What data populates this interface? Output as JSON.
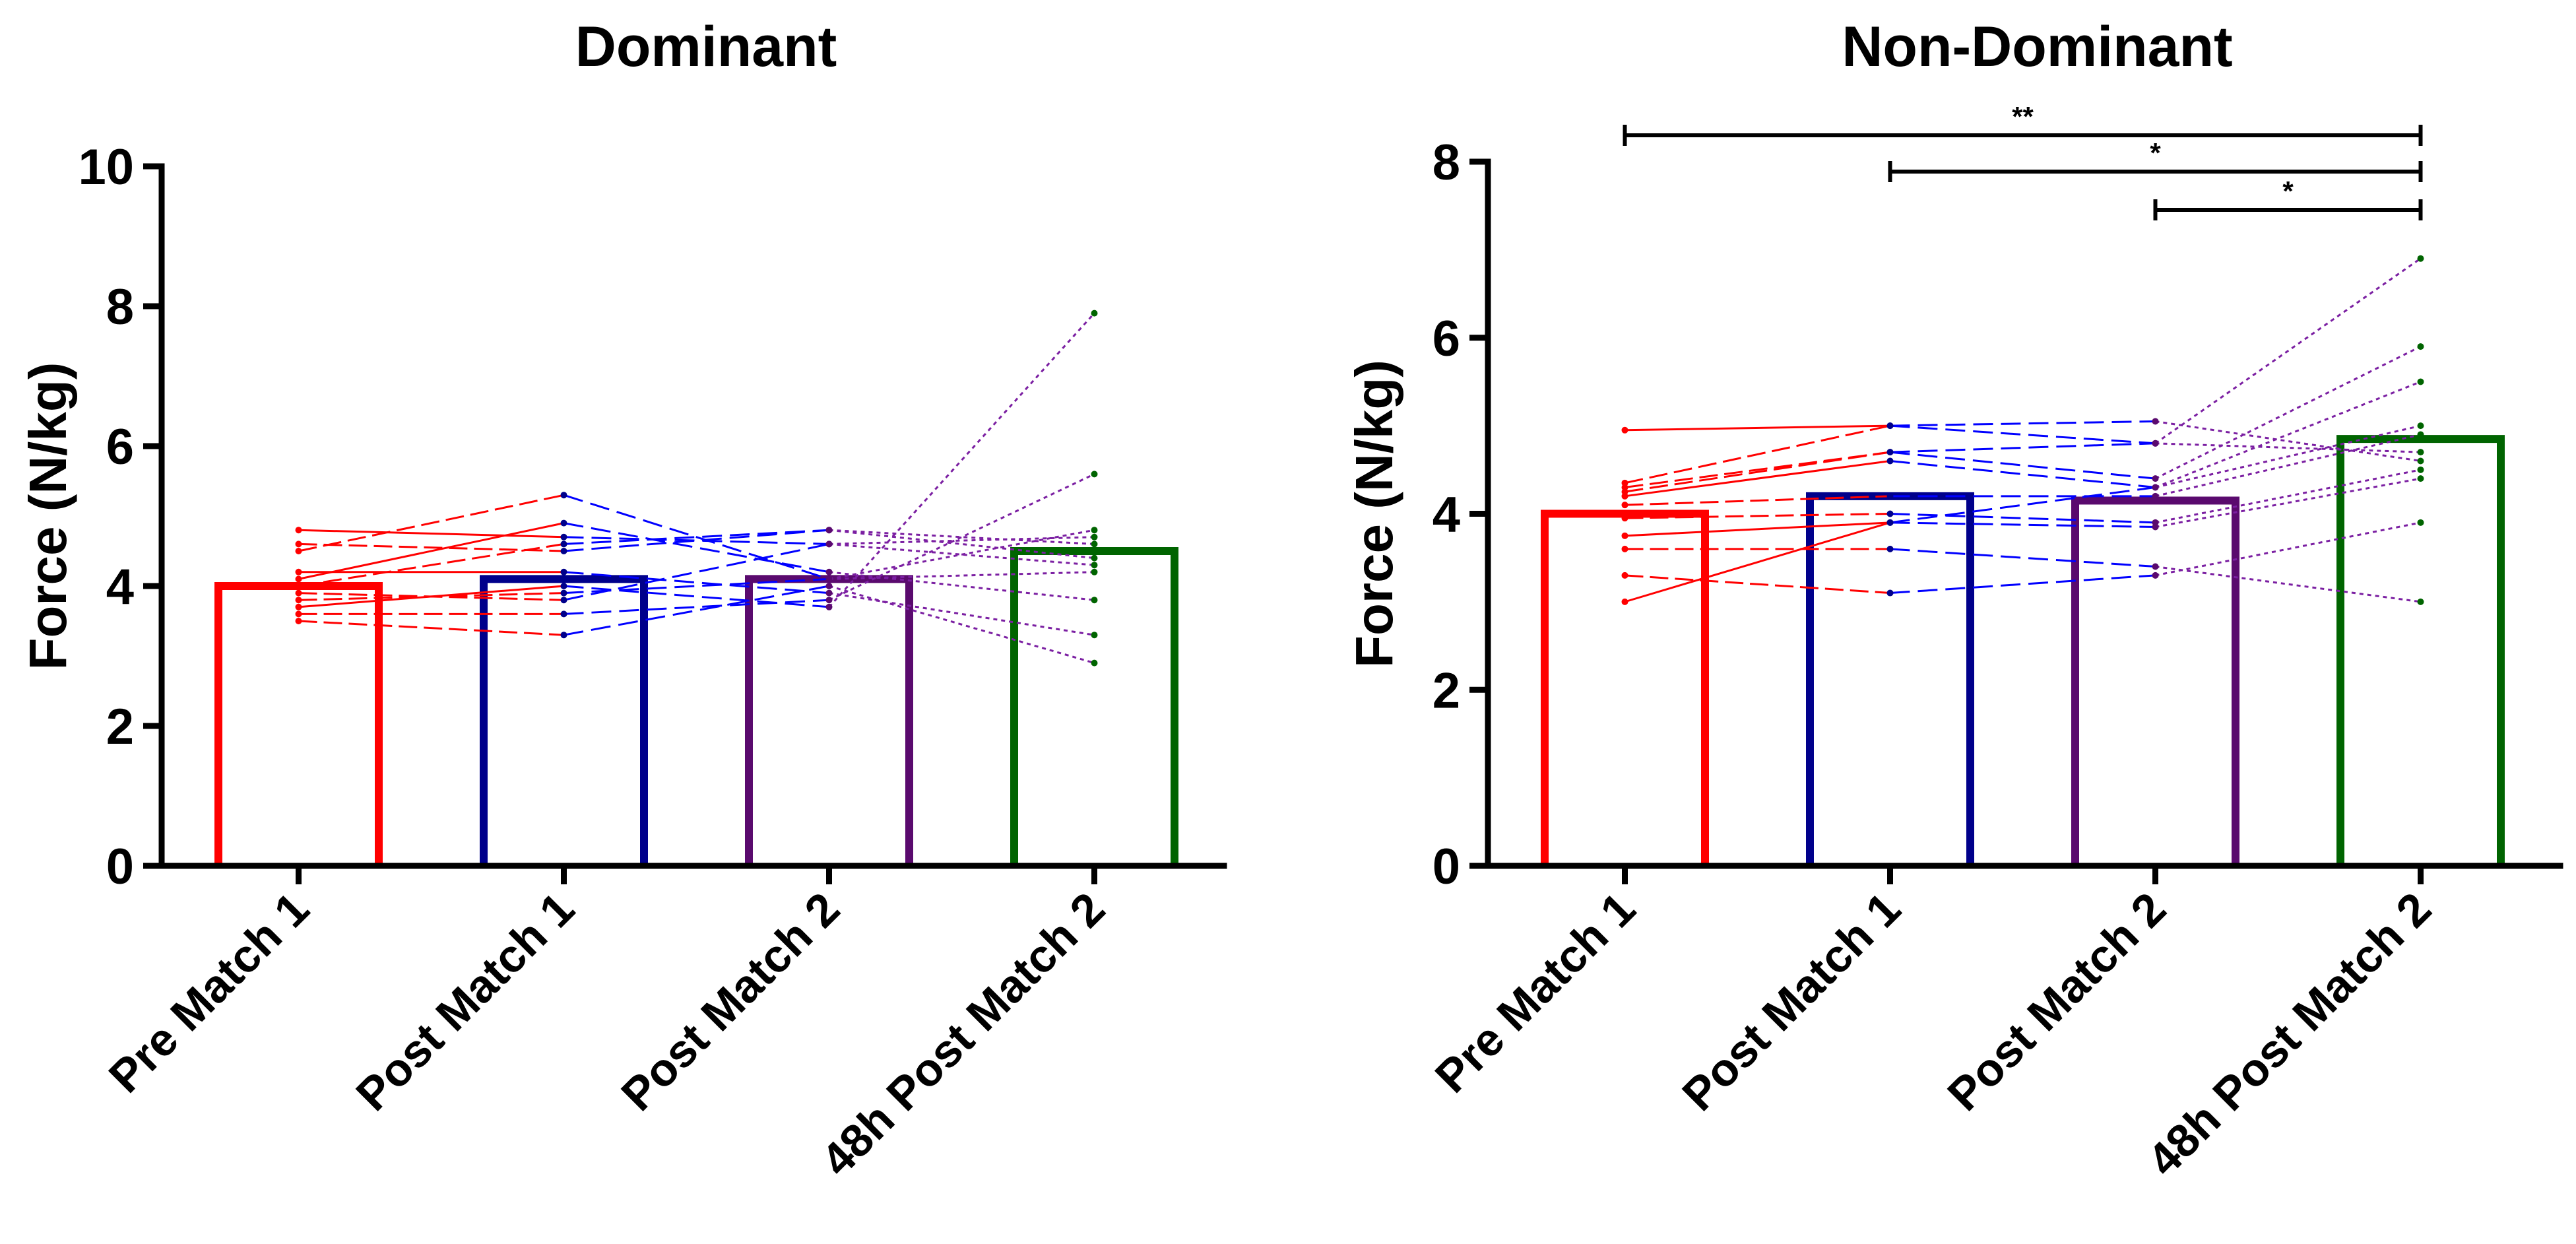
{
  "chart_data": [
    {
      "type": "bar",
      "title": "Dominant",
      "xlabel": "",
      "ylabel": "Force (N/kg)",
      "ylim": [
        0,
        10
      ],
      "yticks": [
        0,
        2,
        4,
        6,
        8,
        10
      ],
      "categories": [
        "Pre Match 1",
        "Post Match 1",
        "Post Match 2",
        "48h Post Match 2"
      ],
      "values": [
        4.0,
        4.1,
        4.1,
        4.5
      ],
      "colors": [
        "#ff0000",
        "#00008b",
        "#5a0a6e",
        "#006400"
      ],
      "individual_lines": [
        {
          "values": [
            4.8,
            4.7,
            4.6,
            4.3
          ]
        },
        {
          "values": [
            4.6,
            4.5,
            4.8,
            4.4
          ]
        },
        {
          "values": [
            4.5,
            5.3,
            4.1,
            4.8
          ]
        },
        {
          "values": [
            4.1,
            4.9,
            4.2,
            3.8
          ]
        },
        {
          "values": [
            4.0,
            4.6,
            4.8,
            4.6
          ]
        },
        {
          "values": [
            3.9,
            3.8,
            4.6,
            4.7
          ]
        },
        {
          "values": [
            3.7,
            4.0,
            3.7,
            7.9
          ]
        },
        {
          "values": [
            3.6,
            3.6,
            3.8,
            5.6
          ]
        },
        {
          "values": [
            3.5,
            3.3,
            4.0,
            2.9
          ]
        },
        {
          "values": [
            4.2,
            4.2,
            3.9,
            3.3
          ]
        },
        {
          "values": [
            3.8,
            3.9,
            4.1,
            4.2
          ]
        }
      ],
      "significance": []
    },
    {
      "type": "bar",
      "title": "Non-Dominant",
      "xlabel": "",
      "ylabel": "Force (N/kg)",
      "ylim": [
        0,
        8
      ],
      "yticks": [
        0,
        2,
        4,
        6,
        8
      ],
      "categories": [
        "Pre Match 1",
        "Post Match 1",
        "Post Match 2",
        "48h Post Match 2"
      ],
      "values": [
        4.0,
        4.2,
        4.15,
        4.85
      ],
      "colors": [
        "#ff0000",
        "#00008b",
        "#5a0a6e",
        "#006400"
      ],
      "individual_lines": [
        {
          "values": [
            4.95,
            5.0,
            5.05,
            4.6
          ]
        },
        {
          "values": [
            4.35,
            5.0,
            4.8,
            6.9
          ]
        },
        {
          "values": [
            4.3,
            4.7,
            4.4,
            5.9
          ]
        },
        {
          "values": [
            4.2,
            4.6,
            4.3,
            5.5
          ]
        },
        {
          "values": [
            4.1,
            4.2,
            4.2,
            4.9
          ]
        },
        {
          "values": [
            3.95,
            4.0,
            3.9,
            4.5
          ]
        },
        {
          "values": [
            3.75,
            3.9,
            3.85,
            4.4
          ]
        },
        {
          "values": [
            3.6,
            3.6,
            3.4,
            3.0
          ]
        },
        {
          "values": [
            3.3,
            3.1,
            3.3,
            3.9
          ]
        },
        {
          "values": [
            3.0,
            3.9,
            4.3,
            5.0
          ]
        },
        {
          "values": [
            4.25,
            4.7,
            4.8,
            4.7
          ]
        }
      ],
      "significance": [
        {
          "from": 0,
          "to": 3,
          "label": "**"
        },
        {
          "from": 1,
          "to": 3,
          "label": "*"
        },
        {
          "from": 2,
          "to": 3,
          "label": "*"
        }
      ]
    }
  ]
}
